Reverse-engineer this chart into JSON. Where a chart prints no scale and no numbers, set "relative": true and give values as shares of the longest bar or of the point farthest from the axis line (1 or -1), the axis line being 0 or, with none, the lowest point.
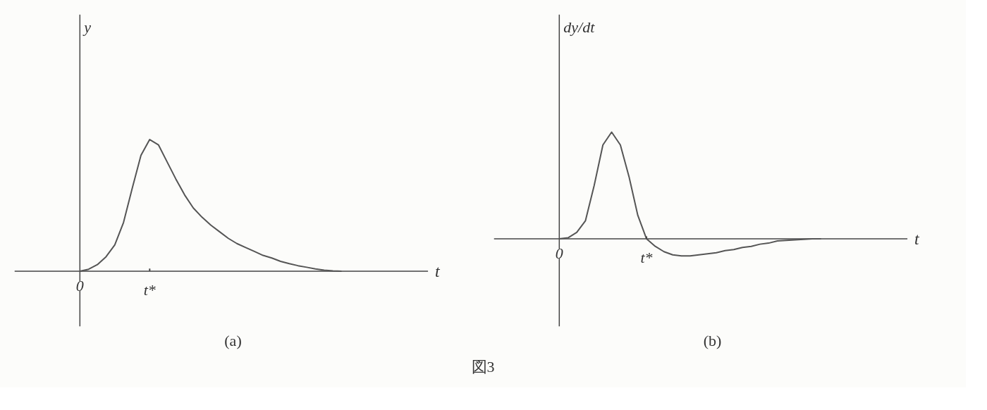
{
  "chart_data": [
    {
      "type": "line",
      "title": "(a)",
      "xlabel": "t",
      "ylabel": "y",
      "relative": true,
      "color": "#555555",
      "categories": [
        "0",
        null,
        null,
        null,
        null,
        null,
        null,
        null,
        "t*",
        null,
        null,
        null,
        null,
        null,
        null,
        null,
        null,
        null,
        null,
        null,
        null,
        null,
        null,
        null,
        null,
        null,
        null,
        null,
        null,
        null,
        null
      ],
      "values": [
        0,
        0.015,
        0.05,
        0.11,
        0.2,
        0.37,
        0.63,
        0.88,
        1,
        0.96,
        0.83,
        0.7,
        0.58,
        0.48,
        0.41,
        0.35,
        0.3,
        0.25,
        0.21,
        0.18,
        0.15,
        0.12,
        0.1,
        0.075,
        0.057,
        0.042,
        0.03,
        0.017,
        0.008,
        0.003,
        0
      ]
    },
    {
      "type": "line",
      "title": "(b)",
      "xlabel": "t",
      "ylabel": "dy/dt",
      "relative": true,
      "color": "#555555",
      "annotations": [
        "図3"
      ],
      "categories": [
        "0",
        null,
        null,
        null,
        null,
        null,
        null,
        null,
        null,
        null,
        "t*",
        null,
        null,
        null,
        null,
        null,
        null,
        null,
        null,
        null,
        null,
        null,
        null,
        null,
        null,
        null,
        null,
        null,
        null,
        null,
        null
      ],
      "values": [
        0,
        0.01,
        0.06,
        0.17,
        0.5,
        0.88,
        1,
        0.88,
        0.58,
        0.22,
        0,
        -0.07,
        -0.12,
        -0.15,
        -0.16,
        -0.16,
        -0.15,
        -0.14,
        -0.13,
        -0.11,
        -0.1,
        -0.08,
        -0.07,
        -0.05,
        -0.04,
        -0.02,
        -0.015,
        -0.01,
        -0.005,
        0,
        0
      ]
    }
  ]
}
